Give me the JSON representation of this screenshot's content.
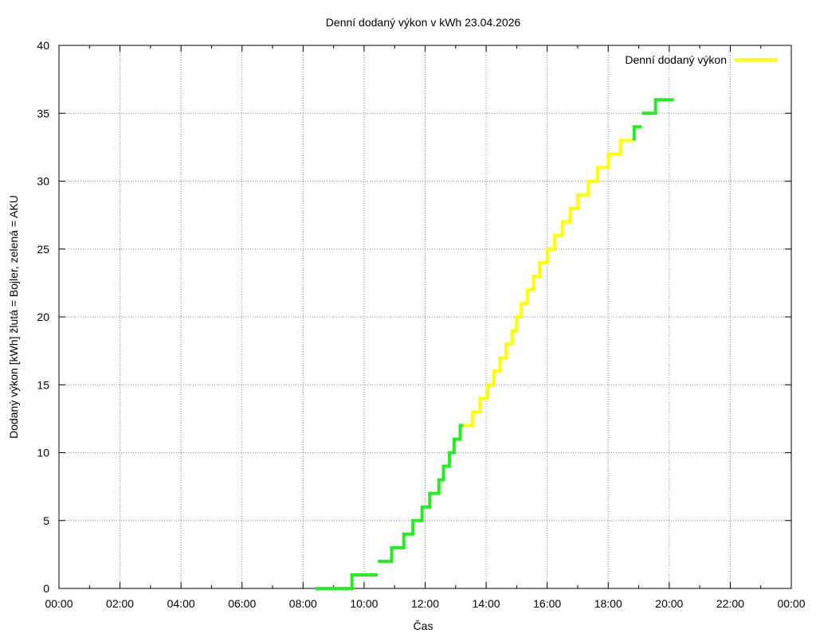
{
  "chart_data": {
    "type": "line",
    "title": "Denní dodaný výkon v kWh 23.04.2026",
    "xlabel": "Čas",
    "ylabel": "Dodaný výkon [kWh]  žlutá = Bojler, zelená = AKU",
    "x_ticks": [
      "00:00",
      "02:00",
      "04:00",
      "06:00",
      "08:00",
      "10:00",
      "12:00",
      "14:00",
      "16:00",
      "18:00",
      "20:00",
      "22:00",
      "00:00"
    ],
    "y_ticks": [
      "0",
      "5",
      "10",
      "15",
      "20",
      "25",
      "30",
      "35",
      "40"
    ],
    "xlim": [
      0,
      24
    ],
    "ylim": [
      0,
      40
    ],
    "grid": true,
    "legend_position": "top-right",
    "series": [
      {
        "name": "Denní dodaný výkon",
        "color": "#ffff00",
        "legend": true,
        "style": "step",
        "points": [
          [
            13.25,
            12
          ],
          [
            13.55,
            13
          ],
          [
            13.8,
            14
          ],
          [
            14.05,
            15
          ],
          [
            14.25,
            16
          ],
          [
            14.45,
            17
          ],
          [
            14.65,
            18
          ],
          [
            14.85,
            19
          ],
          [
            15.0,
            20
          ],
          [
            15.15,
            21
          ],
          [
            15.35,
            22
          ],
          [
            15.55,
            23
          ],
          [
            15.75,
            24
          ],
          [
            16.0,
            25
          ],
          [
            16.25,
            26
          ],
          [
            16.5,
            27
          ],
          [
            16.75,
            28
          ],
          [
            17.0,
            29
          ],
          [
            17.35,
            30
          ],
          [
            17.65,
            31
          ],
          [
            18.0,
            32
          ],
          [
            18.4,
            33
          ],
          [
            18.85,
            33
          ]
        ]
      },
      {
        "name": "AKU",
        "color": "#22ee22",
        "legend": false,
        "style": "step",
        "segments": [
          [
            [
              8.4,
              0
            ],
            [
              9.6,
              0
            ],
            [
              9.6,
              1
            ],
            [
              10.45,
              1
            ]
          ],
          [
            [
              10.45,
              2
            ],
            [
              10.9,
              2
            ],
            [
              10.9,
              3
            ],
            [
              11.3,
              3
            ],
            [
              11.3,
              4
            ],
            [
              11.6,
              4
            ],
            [
              11.6,
              5
            ],
            [
              11.9,
              5
            ],
            [
              11.9,
              6
            ],
            [
              12.15,
              6
            ],
            [
              12.15,
              7
            ],
            [
              12.45,
              7
            ],
            [
              12.45,
              8
            ],
            [
              12.6,
              8
            ],
            [
              12.6,
              9
            ],
            [
              12.8,
              9
            ],
            [
              12.8,
              10
            ],
            [
              12.95,
              10
            ],
            [
              12.95,
              11
            ],
            [
              13.15,
              11
            ],
            [
              13.15,
              12
            ],
            [
              13.25,
              12
            ]
          ],
          [
            [
              18.85,
              33
            ],
            [
              18.85,
              34
            ],
            [
              19.1,
              34
            ]
          ],
          [
            [
              19.1,
              35
            ],
            [
              19.55,
              35
            ],
            [
              19.55,
              36
            ],
            [
              20.15,
              36
            ]
          ]
        ]
      }
    ]
  }
}
